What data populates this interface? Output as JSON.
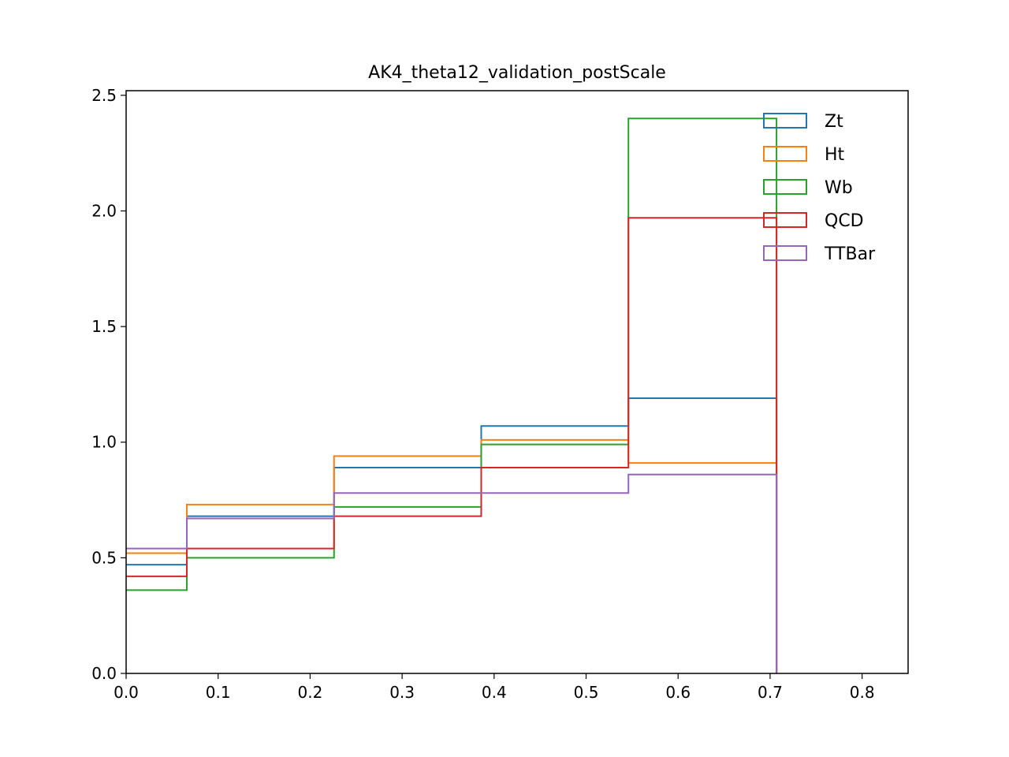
{
  "chart_data": {
    "type": "step",
    "title": "AK4_theta12_validation_postScale",
    "xlabel": "",
    "ylabel": "",
    "xlim": [
      0.0,
      0.85
    ],
    "ylim": [
      0.0,
      2.52
    ],
    "xticks": [
      "0.0",
      "0.1",
      "0.2",
      "0.3",
      "0.4",
      "0.5",
      "0.6",
      "0.7",
      "0.8"
    ],
    "xtick_values": [
      0.0,
      0.1,
      0.2,
      0.3,
      0.4,
      0.5,
      0.6,
      0.7,
      0.8
    ],
    "yticks": [
      "0.0",
      "0.5",
      "1.0",
      "1.5",
      "2.0",
      "2.5"
    ],
    "ytick_values": [
      0.0,
      0.5,
      1.0,
      1.5,
      2.0,
      2.5
    ],
    "grid": false,
    "legend_position": "top-right",
    "bin_edges": [
      0.0,
      0.066,
      0.226,
      0.386,
      0.546,
      0.707
    ],
    "series": [
      {
        "name": "Zt",
        "color": "#1f77b4",
        "values": [
          0.47,
          0.68,
          0.89,
          1.07,
          1.19
        ]
      },
      {
        "name": "Ht",
        "color": "#ff7f0e",
        "values": [
          0.52,
          0.73,
          0.94,
          1.01,
          0.91
        ]
      },
      {
        "name": "Wb",
        "color": "#2ca02c",
        "values": [
          0.36,
          0.5,
          0.72,
          0.99,
          2.4
        ]
      },
      {
        "name": "QCD",
        "color": "#d62728",
        "values": [
          0.42,
          0.54,
          0.68,
          0.89,
          1.97
        ]
      },
      {
        "name": "TTBar",
        "color": "#9467bd",
        "values": [
          0.54,
          0.67,
          0.78,
          0.78,
          0.86
        ]
      }
    ]
  }
}
